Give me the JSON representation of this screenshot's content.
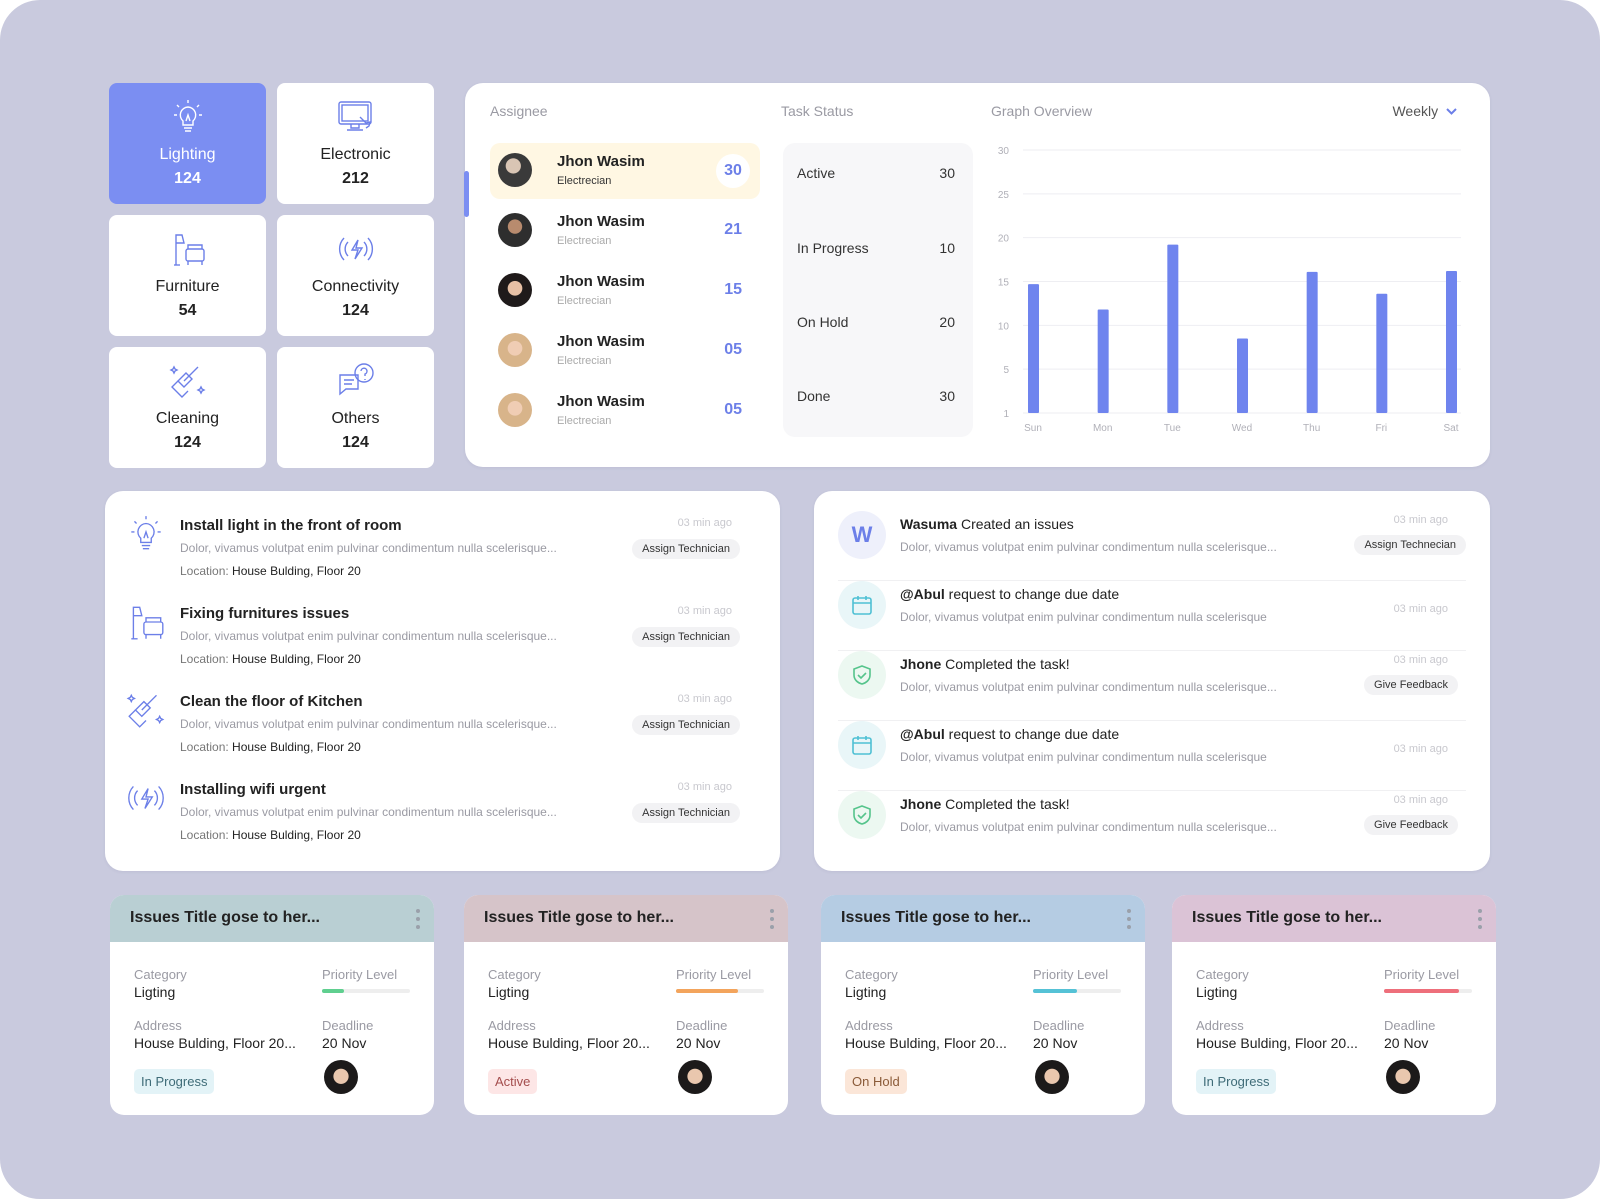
{
  "categories": [
    {
      "name": "Lighting",
      "count": "124",
      "icon": "lightbulb-icon",
      "active": true
    },
    {
      "name": "Electronic",
      "count": "212",
      "icon": "monitor-icon",
      "active": false
    },
    {
      "name": "Furniture",
      "count": "54",
      "icon": "furniture-icon",
      "active": false
    },
    {
      "name": "Connectivity",
      "count": "124",
      "icon": "wireless-icon",
      "active": false
    },
    {
      "name": "Cleaning",
      "count": "124",
      "icon": "cleaning-brush-icon",
      "active": false
    },
    {
      "name": "Others",
      "count": "124",
      "icon": "chat-question-icon",
      "active": false
    }
  ],
  "overview": {
    "assignee_header": "Assignee",
    "status_header": "Task Status",
    "graph_header": "Graph Overview",
    "period": "Weekly",
    "assignees": [
      {
        "name": "Jhon Wasim",
        "role": "Electrecian",
        "count": "30"
      },
      {
        "name": "Jhon Wasim",
        "role": "Electrecian",
        "count": "21"
      },
      {
        "name": "Jhon Wasim",
        "role": "Electrecian",
        "count": "15"
      },
      {
        "name": "Jhon Wasim",
        "role": "Electrecian",
        "count": "05"
      },
      {
        "name": "Jhon Wasim",
        "role": "Electrecian",
        "count": "05"
      }
    ],
    "statuses": [
      {
        "label": "Active",
        "value": "30"
      },
      {
        "label": "In Progress",
        "value": "10"
      },
      {
        "label": "On Hold",
        "value": "20"
      },
      {
        "label": "Done",
        "value": "30"
      }
    ]
  },
  "chart_data": {
    "type": "bar",
    "categories": [
      "Sun",
      "Mon",
      "Tue",
      "Wed",
      "Thu",
      "Fri",
      "Sat"
    ],
    "values": [
      14.7,
      11.8,
      19.2,
      8.5,
      16.1,
      13.6,
      16.2
    ],
    "yticks": [
      "30",
      "25",
      "20",
      "15",
      "10",
      "5",
      "1"
    ],
    "ylim": [
      0,
      30
    ],
    "grid": true,
    "bar_color": "#6f84ee"
  },
  "issues": [
    {
      "title": "Install light in the front of room",
      "desc": "Dolor, vivamus volutpat enim pulvinar condimentum nulla scelerisque...",
      "loc_label": "Location:",
      "location": "House Bulding, Floor 20",
      "time": "03 min ago",
      "action": "Assign Technician",
      "icon": "lightbulb-icon"
    },
    {
      "title": "Fixing furnitures issues",
      "desc": "Dolor, vivamus volutpat enim pulvinar condimentum nulla scelerisque...",
      "loc_label": "Location:",
      "location": "House Bulding, Floor 20",
      "time": "03 min ago",
      "action": "Assign Technician",
      "icon": "furniture-icon"
    },
    {
      "title": "Clean the floor of Kitchen",
      "desc": "Dolor, vivamus volutpat enim pulvinar condimentum nulla scelerisque...",
      "loc_label": "Location:",
      "location": "House Bulding, Floor 20",
      "time": "03 min ago",
      "action": "Assign Technician",
      "icon": "cleaning-brush-icon"
    },
    {
      "title": "Installing wifi urgent",
      "desc": "Dolor, vivamus volutpat enim pulvinar condimentum nulla scelerisque...",
      "loc_label": "Location:",
      "location": "House Bulding, Floor 20",
      "time": "03 min ago",
      "action": "Assign Technician",
      "icon": "wireless-icon"
    }
  ],
  "activity": [
    {
      "actor": "Wasuma",
      "text": " Created an issues",
      "desc": "Dolor, vivamus volutpat enim pulvinar condimentum nulla scelerisque...",
      "time": "03 min ago",
      "action": "Assign Technecian",
      "avatar_letter": "W",
      "icon": "letter-avatar"
    },
    {
      "actor": "@Abul",
      "text": " request to change due date",
      "desc": "Dolor, vivamus volutpat enim pulvinar condimentum nulla scelerisque",
      "time": "03 min ago",
      "action": "",
      "icon": "calendar-icon"
    },
    {
      "actor": "Jhone",
      "text": " Completed the task!",
      "desc": "Dolor, vivamus volutpat enim pulvinar condimentum nulla scelerisque...",
      "time": "03 min ago",
      "action": "Give Feedback",
      "icon": "shield-check-icon"
    },
    {
      "actor": "@Abul",
      "text": " request to change due date",
      "desc": "Dolor, vivamus volutpat enim pulvinar condimentum nulla scelerisque",
      "time": "03 min ago",
      "action": "",
      "icon": "calendar-icon"
    },
    {
      "actor": "Jhone",
      "text": " Completed the task!",
      "desc": "Dolor, vivamus volutpat enim pulvinar condimentum nulla scelerisque...",
      "time": "03 min ago",
      "action": "Give Feedback",
      "icon": "shield-check-icon"
    }
  ],
  "issue_cards": [
    {
      "title": "Issues Title  gose to her...",
      "category_label": "Category",
      "category": "Ligting",
      "priority_label": "Priority Level",
      "priority": 0.25,
      "priority_color": "#5fcf8f",
      "address_label": "Address",
      "address": "House Bulding, Floor 20...",
      "deadline_label": "Deadline",
      "deadline": "20 Nov",
      "status": "In Progress",
      "status_bg": "#e3f3f7",
      "status_color": "#3e6b77",
      "header_color": "#b9cfd3"
    },
    {
      "title": "Issues Title  gose to her...",
      "category_label": "Category",
      "category": "Ligting",
      "priority_label": "Priority Level",
      "priority": 0.7,
      "priority_color": "#f3a45c",
      "address_label": "Address",
      "address": "House Bulding, Floor 20...",
      "deadline_label": "Deadline",
      "deadline": "20 Nov",
      "status": "Active",
      "status_bg": "#fde6e6",
      "status_color": "#a44d4d",
      "header_color": "#d6c4c9"
    },
    {
      "title": "Issues Title  gose to her...",
      "category_label": "Category",
      "category": "Ligting",
      "priority_label": "Priority Level",
      "priority": 0.5,
      "priority_color": "#55c2d6",
      "address_label": "Address",
      "address": "House Bulding, Floor 20...",
      "deadline_label": "Deadline",
      "deadline": "20 Nov",
      "status": "On Hold",
      "status_bg": "#fbe6d8",
      "status_color": "#8a5a38",
      "header_color": "#b5cce3"
    },
    {
      "title": "Issues Title  gose to her...",
      "category_label": "Category",
      "category": "Ligting",
      "priority_label": "Priority Level",
      "priority": 0.85,
      "priority_color": "#ee6f7b",
      "address_label": "Address",
      "address": "House Bulding, Floor 20...",
      "deadline_label": "Deadline",
      "deadline": "20 Nov",
      "status": "In Progress",
      "status_bg": "#e3f3f7",
      "status_color": "#3e6b77",
      "header_color": "#dbc3d6"
    }
  ]
}
